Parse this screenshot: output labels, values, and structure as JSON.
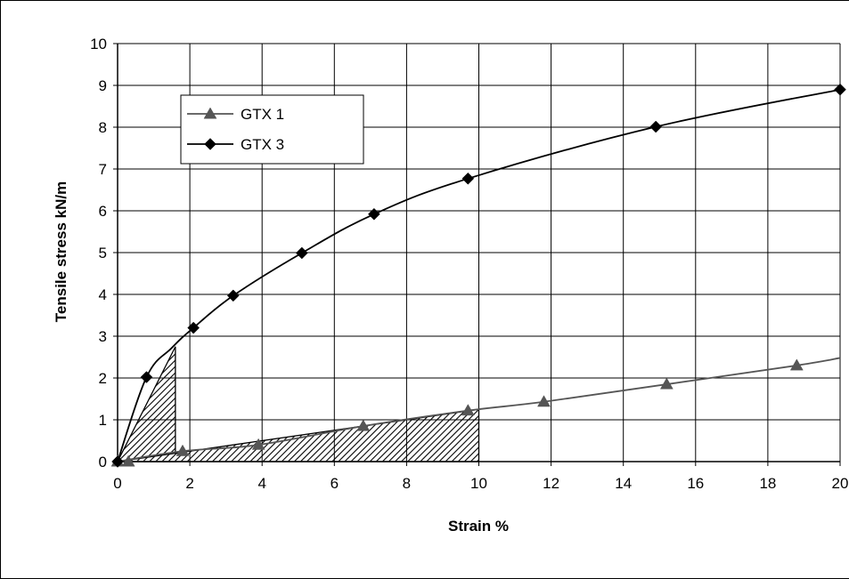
{
  "chart_data": {
    "type": "line",
    "xlabel": "Strain %",
    "ylabel": "Tensile stress kN/m",
    "xlim": [
      0,
      20
    ],
    "ylim": [
      0,
      10
    ],
    "xticks": [
      0,
      2,
      4,
      6,
      8,
      10,
      12,
      14,
      16,
      18,
      20
    ],
    "yticks": [
      0,
      1,
      2,
      3,
      4,
      5,
      6,
      7,
      8,
      9,
      10
    ],
    "grid": true,
    "legend_position": "top-left",
    "series": [
      {
        "name": "GTX 1",
        "marker": "triangle",
        "color": "#555555",
        "points": [
          [
            0,
            0
          ],
          [
            0.3,
            0
          ],
          [
            1.8,
            0.25
          ],
          [
            3.9,
            0.4
          ],
          [
            6.8,
            0.85
          ],
          [
            9.7,
            1.22
          ],
          [
            11.8,
            1.43
          ],
          [
            15.2,
            1.85
          ],
          [
            18.8,
            2.3
          ]
        ],
        "curve": [
          [
            0,
            0
          ],
          [
            1.8,
            0.25
          ],
          [
            3.9,
            0.4
          ],
          [
            6.8,
            0.85
          ],
          [
            9.7,
            1.22
          ],
          [
            11.8,
            1.43
          ],
          [
            15.2,
            1.85
          ],
          [
            18.8,
            2.3
          ],
          [
            20,
            2.48
          ]
        ]
      },
      {
        "name": "GTX 3",
        "marker": "diamond",
        "color": "#000000",
        "points": [
          [
            0,
            0
          ],
          [
            0.8,
            2.02
          ],
          [
            2.1,
            3.2
          ],
          [
            3.2,
            3.97
          ],
          [
            5.1,
            4.99
          ],
          [
            7.1,
            5.92
          ],
          [
            9.7,
            6.77
          ],
          [
            14.9,
            8.01
          ],
          [
            20,
            8.9
          ]
        ],
        "curve": [
          [
            0,
            0
          ],
          [
            0.8,
            2.02
          ],
          [
            1.5,
            2.72
          ],
          [
            2.1,
            3.2
          ],
          [
            3.2,
            3.97
          ],
          [
            5.1,
            4.99
          ],
          [
            7.1,
            5.92
          ],
          [
            9.7,
            6.77
          ],
          [
            14.9,
            8.01
          ],
          [
            20,
            8.9
          ]
        ]
      }
    ],
    "shaded_regions": [
      {
        "polygon": [
          [
            0,
            0
          ],
          [
            1.6,
            2.75
          ],
          [
            1.6,
            0
          ]
        ]
      },
      {
        "polygon": [
          [
            0,
            0
          ],
          [
            10,
            1.25
          ],
          [
            10,
            0
          ]
        ]
      }
    ]
  }
}
